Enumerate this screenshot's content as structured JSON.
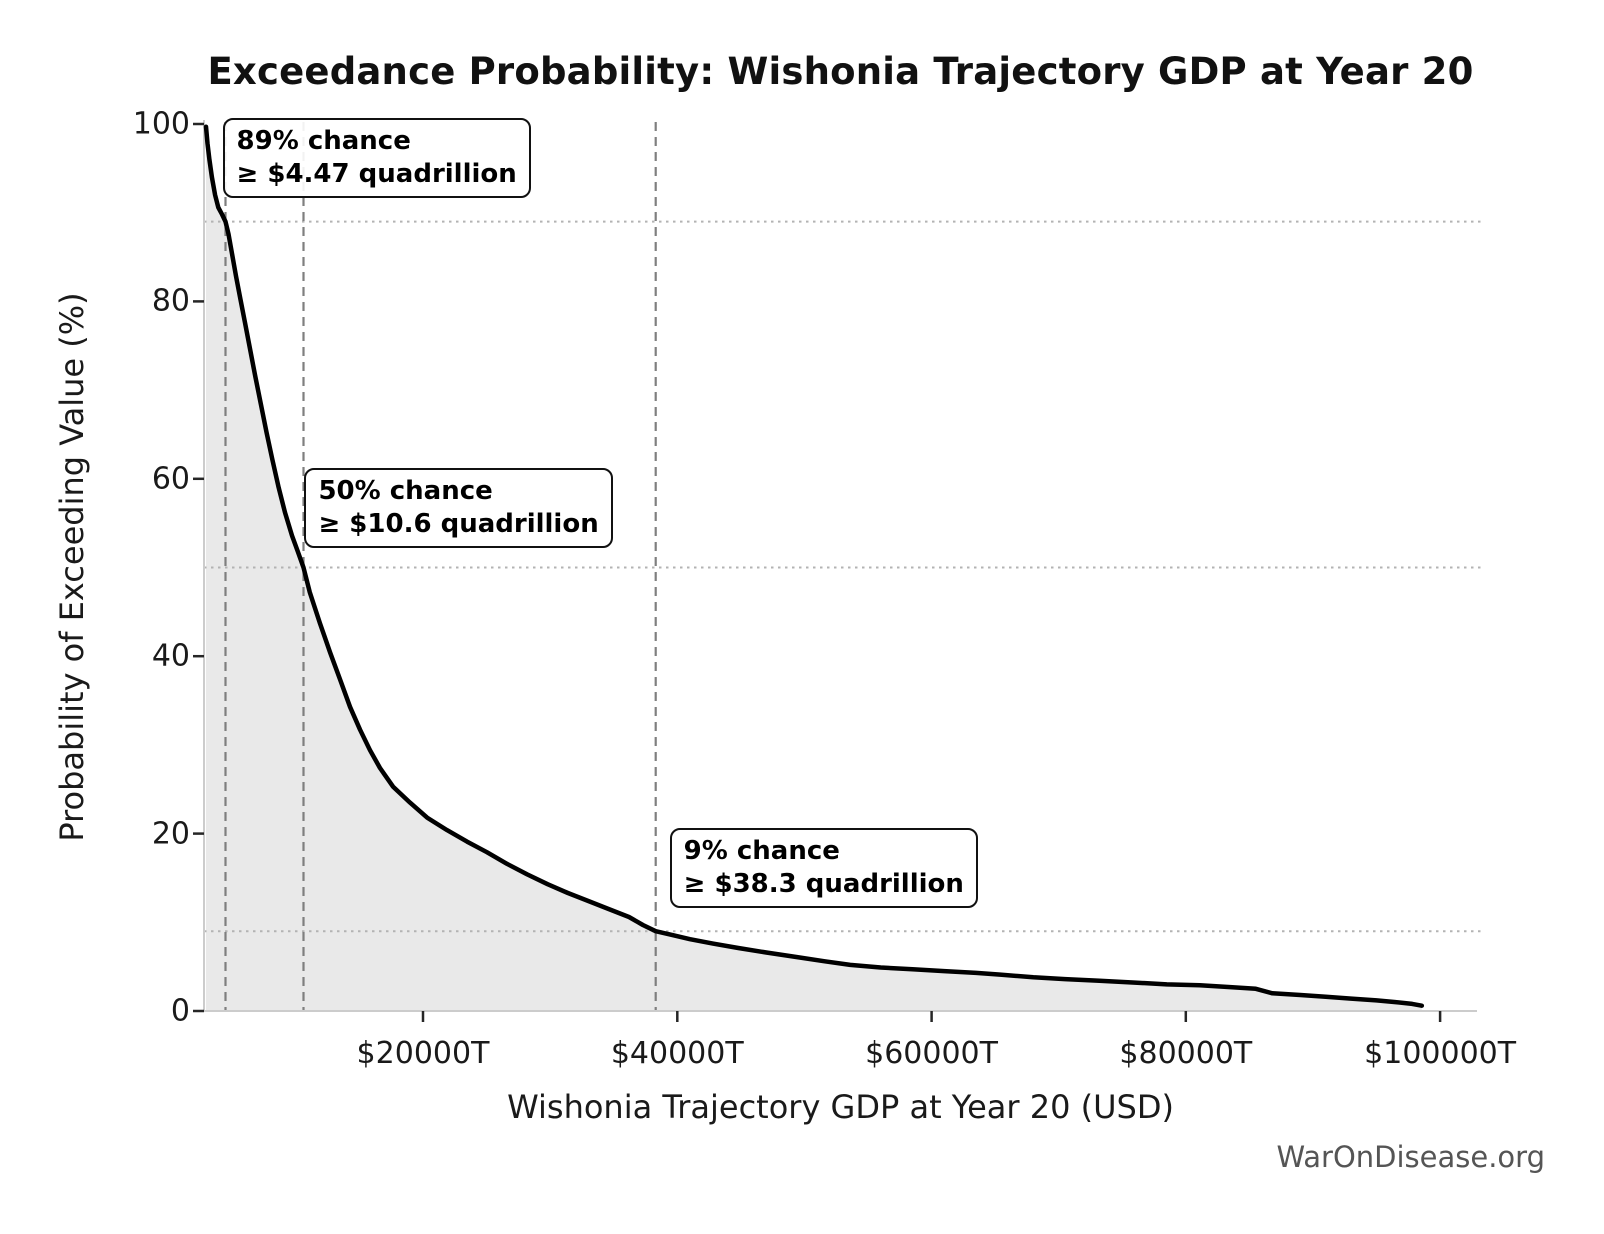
{
  "footer": "WarOnDisease.org",
  "chart_data": {
    "type": "line",
    "title": "Exceedance Probability: Wishonia Trajectory GDP at Year 20",
    "xlabel": "Wishonia Trajectory GDP at Year 20 (USD)",
    "ylabel": "Probability of Exceeding Value (%)",
    "xlim": [
      2776,
      102900
    ],
    "ylim": [
      0,
      100
    ],
    "grid": {
      "horizontal_style": "dotted",
      "vertical_style": "dashed",
      "legend": "none"
    },
    "x_ticks": [
      {
        "value": 20000,
        "label": "$20000T"
      },
      {
        "value": 40000,
        "label": "$40000T"
      },
      {
        "value": 60000,
        "label": "$60000T"
      },
      {
        "value": 80000,
        "label": "$80000T"
      },
      {
        "value": 100000,
        "label": "$100000T"
      }
    ],
    "y_ticks": [
      {
        "value": 0,
        "label": "0"
      },
      {
        "value": 20,
        "label": "20"
      },
      {
        "value": 40,
        "label": "40"
      },
      {
        "value": 60,
        "label": "60"
      },
      {
        "value": 80,
        "label": "80"
      },
      {
        "value": 100,
        "label": "100"
      }
    ],
    "hlines_pct": [
      89,
      50,
      9
    ],
    "vlines_gdp_t": [
      4470,
      10600,
      38300
    ],
    "annotations": [
      {
        "line1": "89% chance",
        "line2": "≥ $4.47 quadrillion",
        "gdp_t": 4470,
        "prob_pct": 89
      },
      {
        "line1": "50% chance",
        "line2": "≥ $10.6 quadrillion",
        "gdp_t": 10600,
        "prob_pct": 50
      },
      {
        "line1": "9% chance",
        "line2": "≥ $38.3 quadrillion",
        "gdp_t": 38300,
        "prob_pct": 9
      }
    ],
    "series": [
      {
        "name": "exceedance-probability-curve",
        "x_unit": "trillion USD",
        "y_unit": "percent",
        "points": [
          [
            2930,
            99.7
          ],
          [
            3050,
            97.8
          ],
          [
            3200,
            96.0
          ],
          [
            3400,
            94.0
          ],
          [
            3650,
            92.0
          ],
          [
            3900,
            90.6
          ],
          [
            4200,
            89.8
          ],
          [
            4470,
            89.0
          ],
          [
            4700,
            87.6
          ],
          [
            5000,
            85.2
          ],
          [
            5300,
            82.8
          ],
          [
            5650,
            80.2
          ],
          [
            6000,
            77.6
          ],
          [
            6400,
            74.6
          ],
          [
            6800,
            71.6
          ],
          [
            7250,
            68.4
          ],
          [
            7700,
            65.2
          ],
          [
            8150,
            62.2
          ],
          [
            8650,
            59.0
          ],
          [
            9150,
            56.2
          ],
          [
            9700,
            53.6
          ],
          [
            10150,
            51.8
          ],
          [
            10600,
            50.0
          ],
          [
            11100,
            47.2
          ],
          [
            11900,
            43.7
          ],
          [
            12700,
            40.4
          ],
          [
            13500,
            37.3
          ],
          [
            14260,
            34.3
          ],
          [
            15050,
            31.7
          ],
          [
            15830,
            29.4
          ],
          [
            16620,
            27.4
          ],
          [
            17640,
            25.3
          ],
          [
            18980,
            23.5
          ],
          [
            20320,
            21.8
          ],
          [
            21890,
            20.4
          ],
          [
            23460,
            19.1
          ],
          [
            25030,
            17.9
          ],
          [
            26600,
            16.6
          ],
          [
            28200,
            15.4
          ],
          [
            29800,
            14.3
          ],
          [
            31400,
            13.3
          ],
          [
            33000,
            12.4
          ],
          [
            34600,
            11.5
          ],
          [
            36200,
            10.6
          ],
          [
            37300,
            9.7
          ],
          [
            38300,
            9.0
          ],
          [
            39500,
            8.6
          ],
          [
            41000,
            8.1
          ],
          [
            42800,
            7.6
          ],
          [
            44800,
            7.1
          ],
          [
            47000,
            6.6
          ],
          [
            49300,
            6.1
          ],
          [
            51600,
            5.6
          ],
          [
            53600,
            5.2
          ],
          [
            56000,
            4.9
          ],
          [
            58500,
            4.7
          ],
          [
            61000,
            4.5
          ],
          [
            63500,
            4.3
          ],
          [
            65400,
            4.1
          ],
          [
            68000,
            3.8
          ],
          [
            70500,
            3.6
          ],
          [
            73200,
            3.4
          ],
          [
            76000,
            3.2
          ],
          [
            78500,
            3.0
          ],
          [
            81100,
            2.9
          ],
          [
            83500,
            2.7
          ],
          [
            85500,
            2.5
          ],
          [
            86800,
            2.0
          ],
          [
            89000,
            1.8
          ],
          [
            91000,
            1.6
          ],
          [
            93000,
            1.4
          ],
          [
            95000,
            1.2
          ],
          [
            96500,
            1.0
          ],
          [
            97800,
            0.8
          ],
          [
            98560,
            0.6
          ]
        ]
      }
    ],
    "colors": {
      "curve": "#000000",
      "area": "#e9e9e9",
      "dashed_line": "#7f7f7f",
      "dotted_line": "#b3b3b3",
      "spine": "#cccccc",
      "tick": "#262626",
      "footer": "#555555"
    }
  }
}
